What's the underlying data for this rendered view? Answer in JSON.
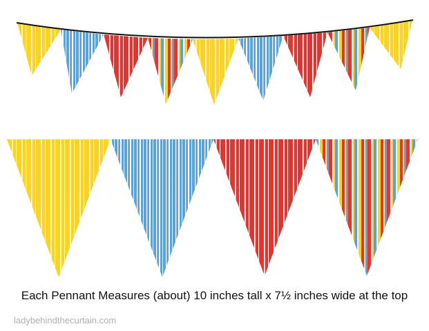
{
  "caption": "Each Pennant Measures (about) 10 inches tall x 7½ inches wide at the top",
  "watermark": "ladybehindthecurtain.com"
}
